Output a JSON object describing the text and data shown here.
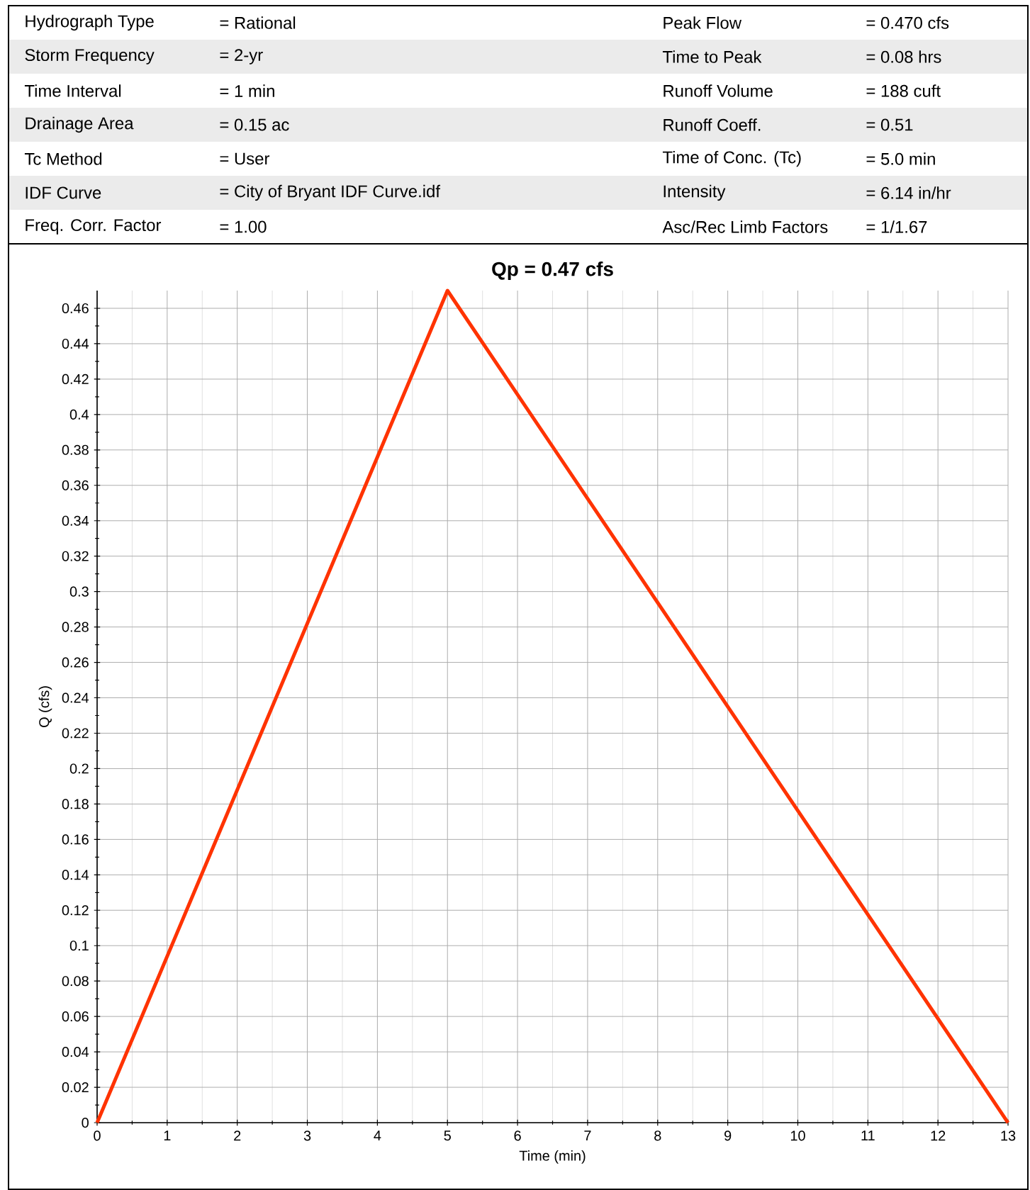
{
  "chart_data": [
    {
      "type": "other",
      "annotations": [
        "Hydrograph Type",
        "= Rational",
        "Peak Flow",
        "= 0.470 cfs",
        "Storm Frequency",
        "= 2-yr",
        "Time to Peak",
        "= 0.08 hrs",
        "Time Interval",
        "= 1 min",
        "Runoff Volume",
        "= 188 cuft",
        "Drainage Area",
        "= 0.15 ac",
        "Runoff Coeff.",
        "= 0.51",
        "Tc Method",
        "= User",
        "Time of Conc. (Tc)",
        "= 5.0 min",
        "IDF Curve",
        "= City of Bryant IDF Curve.idf",
        "Intensity",
        "= 6.14 in/hr",
        "Freq. Corr. Factor",
        "= 1.00",
        "Asc/Rec Limb Factors",
        "= 1/1.67"
      ]
    },
    {
      "type": "line",
      "title": "Qp = 0.47 cfs",
      "xlabel": "Time (min)",
      "ylabel": "Q (cfs)",
      "x": [
        0,
        5,
        13
      ],
      "values": [
        0,
        0.47,
        0
      ],
      "color": "#ff3300",
      "xlim": [
        0,
        13
      ],
      "ylim": [
        0,
        0.47
      ],
      "xticks": [
        0,
        1,
        2,
        3,
        4,
        5,
        6,
        7,
        8,
        9,
        10,
        11,
        12,
        13
      ],
      "yticks": [
        0,
        0.02,
        0.04,
        0.06,
        0.08,
        0.1,
        0.12,
        0.14,
        0.16,
        0.18,
        0.2,
        0.22,
        0.24,
        0.26,
        0.28,
        0.3,
        0.32,
        0.34,
        0.36,
        0.38,
        0.4,
        0.42,
        0.44,
        0.46
      ],
      "grid": true
    }
  ]
}
